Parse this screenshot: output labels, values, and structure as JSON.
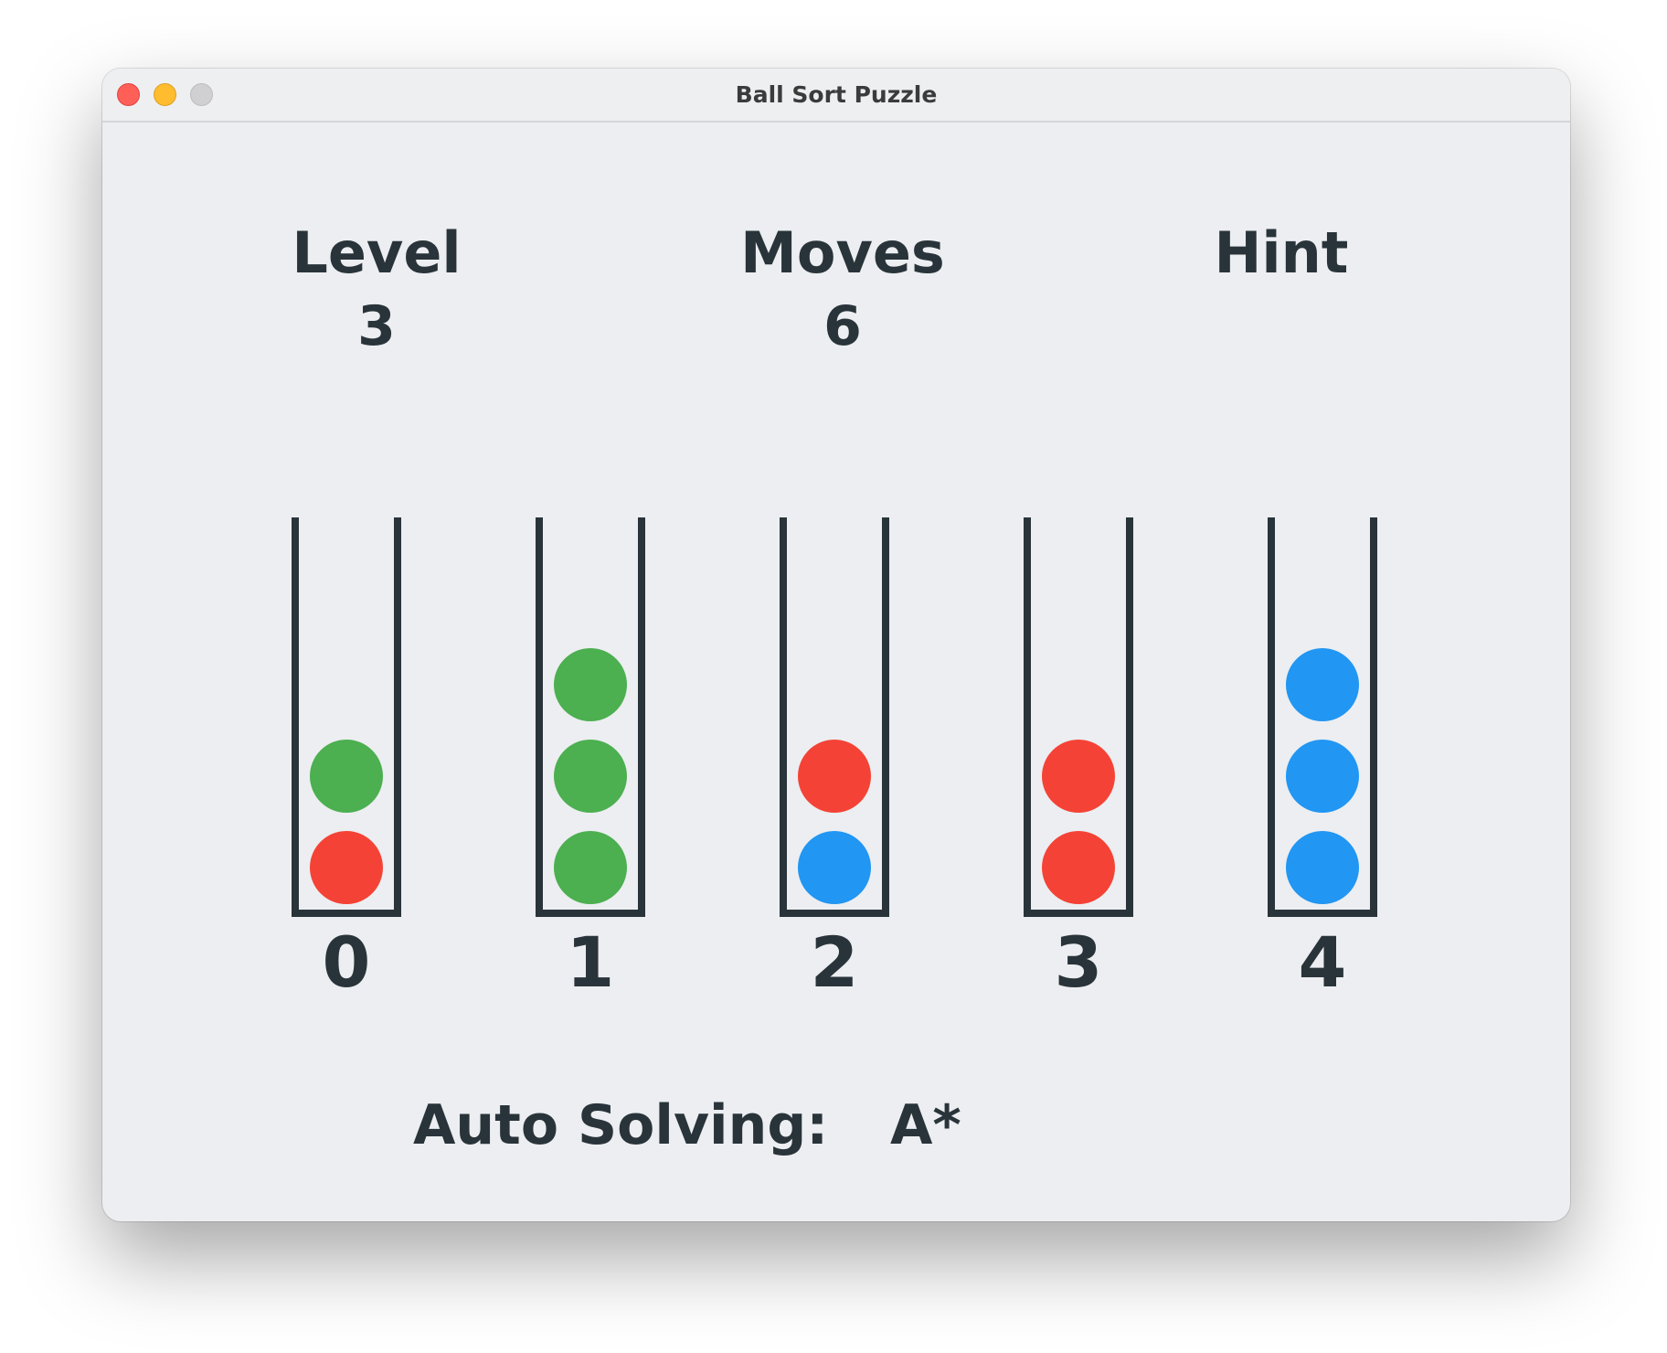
{
  "window": {
    "title": "Ball Sort Puzzle"
  },
  "hud": {
    "level_label": "Level",
    "level_value": "3",
    "moves_label": "Moves",
    "moves_value": "6",
    "hint_label": "Hint"
  },
  "colors": {
    "green": "#4caf50",
    "red": "#f44336",
    "blue": "#2196f3",
    "tube": "#29343a"
  },
  "tubes": [
    {
      "label": "0",
      "balls": [
        "red",
        "green"
      ]
    },
    {
      "label": "1",
      "balls": [
        "green",
        "green",
        "green"
      ]
    },
    {
      "label": "2",
      "balls": [
        "blue",
        "red"
      ]
    },
    {
      "label": "3",
      "balls": [
        "red",
        "red"
      ]
    },
    {
      "label": "4",
      "balls": [
        "blue",
        "blue",
        "blue"
      ]
    }
  ],
  "footer": {
    "auto_solving_label": "Auto Solving:",
    "algorithm": "A*"
  }
}
